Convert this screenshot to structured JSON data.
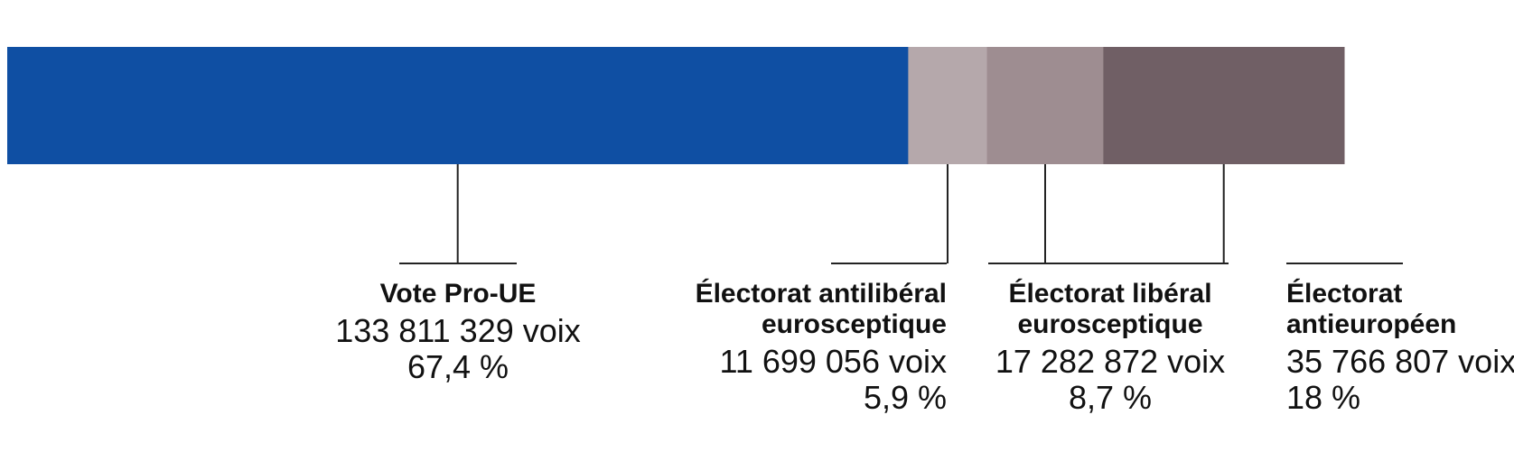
{
  "chart_data": {
    "type": "bar",
    "orientation": "horizontal-stacked",
    "unit": "voix",
    "segments": [
      {
        "title": [
          "Vote Pro-UE"
        ],
        "votes": "133 811 329 voix",
        "value": 133811329,
        "percent_label": "67,4 %",
        "percent": 67.4,
        "color": "#0f4fa3",
        "align": "center"
      },
      {
        "title": [
          "Électorat antilibéral",
          "eurosceptique"
        ],
        "votes": "11 699 056 voix",
        "value": 11699056,
        "percent_label": "5,9 %",
        "percent": 5.9,
        "color": "#b5a8ab",
        "align": "right"
      },
      {
        "title": [
          "Électorat libéral",
          "eurosceptique"
        ],
        "votes": "17 282 872 voix",
        "value": 17282872,
        "percent_label": "8,7 %",
        "percent": 8.7,
        "color": "#9e8d91",
        "align": "center"
      },
      {
        "title": [
          "Électorat",
          "antieuropéen"
        ],
        "votes": "35 766 807 voix",
        "value": 35766807,
        "percent_label": "18 %",
        "percent": 18,
        "color": "#705f65",
        "align": "left"
      }
    ]
  }
}
